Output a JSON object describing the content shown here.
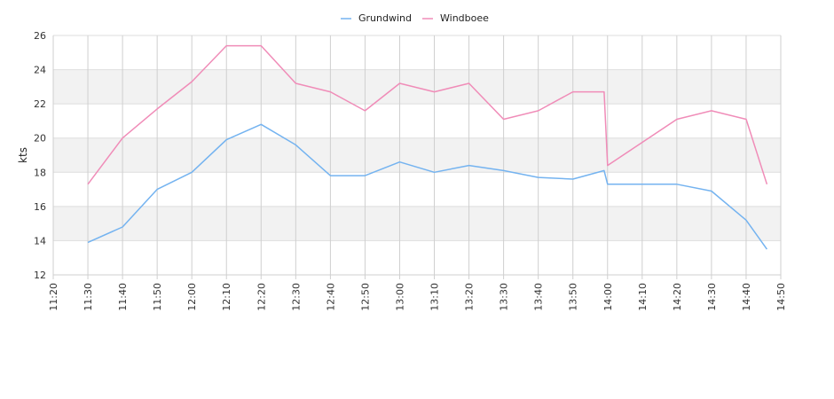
{
  "chart_data": {
    "type": "line",
    "ylabel": "kts",
    "xlabel": "",
    "ylim": [
      12,
      26
    ],
    "yticks": [
      "12",
      "14",
      "16",
      "18",
      "20",
      "22",
      "24",
      "26"
    ],
    "x_range": [
      "11:20",
      "14:50"
    ],
    "xticks": [
      "11:20",
      "11:30",
      "11:40",
      "11:50",
      "12:00",
      "12:10",
      "12:20",
      "12:30",
      "12:40",
      "12:50",
      "13:00",
      "13:10",
      "13:20",
      "13:30",
      "13:40",
      "13:50",
      "14:00",
      "14:10",
      "14:20",
      "14:30",
      "14:40",
      "14:50"
    ],
    "grid": true,
    "alternating_bands": true,
    "band_color": "#f2f2f2",
    "legend_position": "top-center",
    "series": [
      {
        "name": "Grundwind",
        "color": "#74b3f0",
        "points": [
          {
            "x": "11:30",
            "y": 13.9
          },
          {
            "x": "11:40",
            "y": 14.8
          },
          {
            "x": "11:50",
            "y": 17.0
          },
          {
            "x": "12:00",
            "y": 18.0
          },
          {
            "x": "12:10",
            "y": 19.9
          },
          {
            "x": "12:20",
            "y": 20.8
          },
          {
            "x": "12:30",
            "y": 19.6
          },
          {
            "x": "12:40",
            "y": 17.8
          },
          {
            "x": "12:50",
            "y": 17.8
          },
          {
            "x": "13:00",
            "y": 18.6
          },
          {
            "x": "13:10",
            "y": 18.0
          },
          {
            "x": "13:20",
            "y": 18.4
          },
          {
            "x": "13:30",
            "y": 18.1
          },
          {
            "x": "13:40",
            "y": 17.7
          },
          {
            "x": "13:50",
            "y": 17.6
          },
          {
            "x": "13:59",
            "y": 18.1
          },
          {
            "x": "14:00",
            "y": 17.3
          },
          {
            "x": "14:20",
            "y": 17.3
          },
          {
            "x": "14:30",
            "y": 16.9
          },
          {
            "x": "14:40",
            "y": 15.2
          },
          {
            "x": "14:46",
            "y": 13.5
          }
        ]
      },
      {
        "name": "Windboee",
        "color": "#f08cb8",
        "points": [
          {
            "x": "11:30",
            "y": 17.3
          },
          {
            "x": "11:40",
            "y": 20.0
          },
          {
            "x": "11:50",
            "y": 21.7
          },
          {
            "x": "12:00",
            "y": 23.3
          },
          {
            "x": "12:10",
            "y": 25.4
          },
          {
            "x": "12:20",
            "y": 25.4
          },
          {
            "x": "12:30",
            "y": 23.2
          },
          {
            "x": "12:40",
            "y": 22.7
          },
          {
            "x": "12:50",
            "y": 21.6
          },
          {
            "x": "13:00",
            "y": 23.2
          },
          {
            "x": "13:10",
            "y": 22.7
          },
          {
            "x": "13:20",
            "y": 23.2
          },
          {
            "x": "13:30",
            "y": 21.1
          },
          {
            "x": "13:40",
            "y": 21.6
          },
          {
            "x": "13:50",
            "y": 22.7
          },
          {
            "x": "13:59",
            "y": 22.7
          },
          {
            "x": "14:00",
            "y": 18.4
          },
          {
            "x": "14:20",
            "y": 21.1
          },
          {
            "x": "14:30",
            "y": 21.6
          },
          {
            "x": "14:40",
            "y": 21.1
          },
          {
            "x": "14:46",
            "y": 17.3
          }
        ]
      }
    ]
  }
}
